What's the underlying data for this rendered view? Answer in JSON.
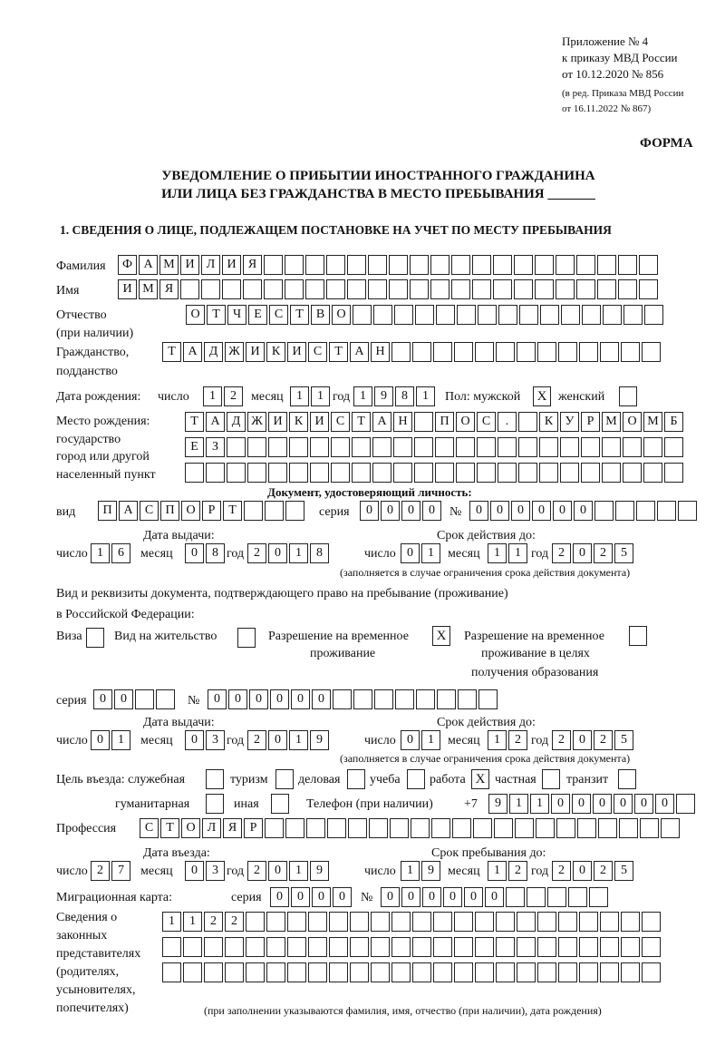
{
  "header": {
    "line1": "Приложение № 4",
    "line2": "к приказу МВД России",
    "line3": "от 10.12.2020 № 856",
    "line4": "(в ред. Приказа МВД России",
    "line5": "от 16.11.2022 № 867)",
    "form": "ФОРМА",
    "title1": "УВЕДОМЛЕНИЕ О ПРИБЫТИИ ИНОСТРАННОГО ГРАЖДАНИНА",
    "title2": "ИЛИ ЛИЦА БЕЗ ГРАЖДАНСТВА В МЕСТО ПРЕБЫВАНИЯ _______",
    "section1": "1. СВЕДЕНИЯ О ЛИЦЕ, ПОДЛЕЖАЩЕМ ПОСТАНОВКЕ НА УЧЕТ ПО МЕСТУ ПРЕБЫВАНИЯ"
  },
  "labels": {
    "surname": "Фамилия",
    "name": "Имя",
    "patronymic1": "Отчество",
    "patronymic2": "(при наличии)",
    "citizenship1": "Гражданство,",
    "citizenship2": "подданство",
    "dob": "Дата рождения:",
    "day": "число",
    "month": "месяц",
    "year": "год",
    "sex": "Пол: мужской",
    "female": "женский",
    "pob1": "Место рождения:",
    "pob2": "государство",
    "pob3": "город или другой",
    "pob4": "населенный пункт",
    "id_doc": "Документ, удостоверяющий личность:",
    "kind": "вид",
    "series": "серия",
    "number": "№",
    "issue_date": "Дата выдачи:",
    "valid_until": "Срок действия до:",
    "valid_note": "(заполняется в случае ограничения срока действия документа)",
    "right_doc1": "Вид и реквизиты документа, подтверждающего право на пребывание (проживание)",
    "right_doc2": "в Российской Федерации:",
    "visa": "Виза",
    "residence": "Вид на жительство",
    "temp1": "Разрешение на временное",
    "temp2": "проживание",
    "edu1": "Разрешение на временное",
    "edu2": "проживание в целях",
    "edu3": "получения образования",
    "purpose": "Цель въезда: служебная",
    "tourism": "туризм",
    "business": "деловая",
    "study": "учеба",
    "work": "работа",
    "private": "частная",
    "transit": "транзит",
    "humanitarian": "гуманитарная",
    "other": "иная",
    "phone": "Телефон (при наличии)",
    "phone_prefix": "+7",
    "profession": "Профессия",
    "entry_date": "Дата въезда:",
    "stay_until": "Срок пребывания до:",
    "migration_card": "Миграционная карта:",
    "reps1": "Сведения о",
    "reps2": "законных",
    "reps3": "представителях",
    "reps4": "(родителях,",
    "reps5": "усыновителях,",
    "reps6": "попечителях)",
    "reps_note": "(при заполнении указываются фамилия, имя, отчество (при наличии), дата рождения)"
  },
  "values": {
    "surname": "ФАМИЛИЯ",
    "name": "ИМЯ",
    "patronymic": "ОТЧЕСТВО",
    "citizenship": "ТАДЖИКИСТАН",
    "dob_day": "12",
    "dob_month": "11",
    "dob_year": "1981",
    "male": "X",
    "female": "",
    "pob_row1": "ТАДЖИКИСТАН ПОС. КУРМОМБ",
    "pob_row2": "ЕЗ",
    "pob_row3": "",
    "id_kind": "ПАСПОРТ",
    "id_series": "0000",
    "id_number": "000000",
    "id_issue_day": "16",
    "id_issue_month": "08",
    "id_issue_year": "2018",
    "id_valid_day": "01",
    "id_valid_month": "11",
    "id_valid_year": "2025",
    "visa": "",
    "residence": "",
    "temp_residence": "X",
    "edu_residence": "",
    "rd_series": "00",
    "rd_number": "000000",
    "rd_issue_day": "01",
    "rd_issue_month": "03",
    "rd_issue_year": "2019",
    "rd_valid_day": "01",
    "rd_valid_month": "12",
    "rd_valid_year": "2025",
    "p_service": "",
    "p_tourism": "",
    "p_business": "",
    "p_study": "",
    "p_work": "X",
    "p_private": "",
    "p_transit": "",
    "p_humanitarian": "",
    "p_other": "",
    "phone": "911000000",
    "profession": "СТОЛЯР",
    "entry_day": "27",
    "entry_month": "03",
    "entry_year": "2019",
    "stay_day": "19",
    "stay_month": "12",
    "stay_year": "2025",
    "mc_series": "0000",
    "mc_number": "000000",
    "reps_row1": "1122",
    "reps_row2": "",
    "reps_row3": ""
  }
}
